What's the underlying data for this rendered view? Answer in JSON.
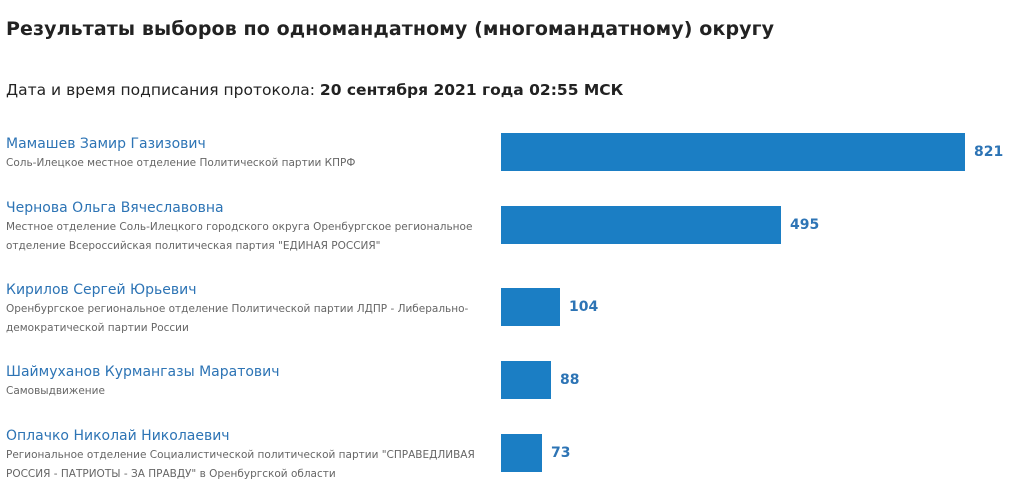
{
  "header": {
    "title": "Результаты выборов по одномандатному (многомандатному) округу",
    "protocol_label": "Дата и время подписания протокола: ",
    "protocol_datetime": "20 сентября 2021 года 02:55 МСК"
  },
  "chart_data": {
    "type": "bar",
    "orientation": "horizontal",
    "categories": [
      "Мамашев Замир Газизович",
      "Чернова Ольга Вячеславовна",
      "Кирилов Сергей Юрьевич",
      "Шаймуханов Курмангазы Маратович",
      "Оплачко Николай Николаевич"
    ],
    "values": [
      821,
      495,
      104,
      88,
      73
    ],
    "data_labels": [
      "821",
      "495",
      "104",
      "88",
      "73"
    ],
    "subtitles": [
      "Соль-Илецкое местное отделение Политической партии КПРФ",
      "Местное отделение Соль-Илецкого городского округа Оренбургское региональное отделение Всероссийская политическая партия \"ЕДИНАЯ РОССИЯ\"",
      "Оренбургское региональное отделение Политической партии ЛДПР - Либерально-демократической партии России",
      "Самовыдвижение",
      "Региональное отделение Социалистической политической партии \"СПРАВЕДЛИВАЯ РОССИЯ - ПАТРИОТЫ - ЗА ПРАВДУ\" в Оренбургской области"
    ],
    "xlim": [
      0,
      821
    ],
    "grid": false,
    "legend": "none",
    "bar_color": "#1b7ec4",
    "label_color": "#2d74b5"
  }
}
